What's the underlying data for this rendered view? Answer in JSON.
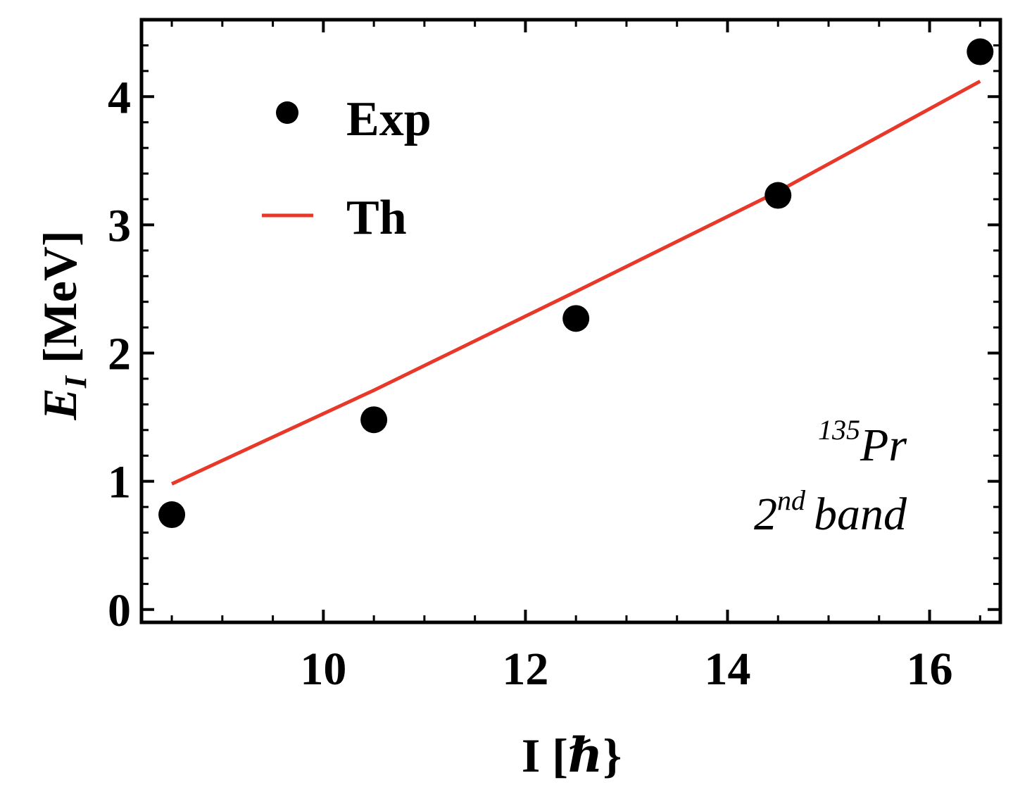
{
  "chart_data": {
    "type": "scatter",
    "xlabel_main": "I [",
    "xlabel_symbol": "ℏ",
    "xlabel_close": "}",
    "ylabel_main": "E",
    "ylabel_sub": "I",
    "ylabel_unit": "[MeV]",
    "xlim": [
      8.2,
      16.7
    ],
    "ylim": [
      -0.1,
      4.6
    ],
    "x_ticks": [
      10,
      12,
      14,
      16
    ],
    "y_ticks": [
      0,
      1,
      2,
      3,
      4
    ],
    "x_tick_labels": [
      "10",
      "12",
      "14",
      "16"
    ],
    "y_tick_labels": [
      "0",
      "1",
      "2",
      "3",
      "4"
    ],
    "legend_position": "top-left",
    "grid": false,
    "series": [
      {
        "name": "Exp",
        "kind": "points",
        "color": "#000000",
        "x": [
          8.5,
          10.5,
          12.5,
          14.5,
          16.5
        ],
        "y": [
          0.74,
          1.48,
          2.27,
          3.23,
          4.35
        ]
      },
      {
        "name": "Th",
        "kind": "line",
        "color": "#e8382a",
        "x": [
          8.5,
          10.5,
          12.5,
          14.5,
          16.5
        ],
        "y": [
          0.98,
          1.71,
          2.48,
          3.26,
          4.12
        ]
      }
    ],
    "annotation": {
      "nucleus_mass": "135",
      "nucleus_symbol": "Pr",
      "band_number": "2",
      "band_suffix": "nd",
      "band_word": "band"
    }
  }
}
